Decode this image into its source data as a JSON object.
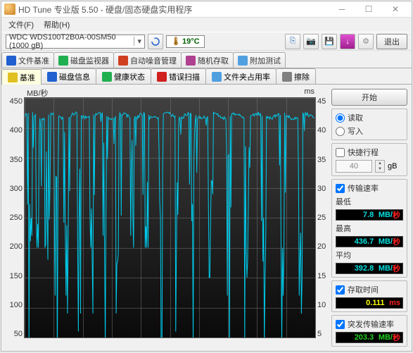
{
  "window": {
    "title": "HD Tune 专业版 5.50 - 硬盘/固态硬盘实用程序"
  },
  "menu": {
    "file": "文件(F)",
    "help": "帮助(H)"
  },
  "toolbar": {
    "device": "WDC WDS100T2B0A-00SM50 (1000 gB)",
    "temperature": "19°C",
    "exit": "退出"
  },
  "colors": {
    "cyan": "#00e0e0",
    "yellow": "#ffff00",
    "red": "#ff2020",
    "green": "#20d020",
    "box_bg": "#000000"
  },
  "tabs_top": [
    {
      "label": "文件基准",
      "icon_color": "#2060d0"
    },
    {
      "label": "磁盘监视器",
      "icon_color": "#20b050"
    },
    {
      "label": "自动噪音管理",
      "icon_color": "#d04020"
    },
    {
      "label": "随机存取",
      "icon_color": "#b04090"
    },
    {
      "label": "附加测试",
      "icon_color": "#50a0e0"
    }
  ],
  "tabs_bottom": [
    {
      "label": "基准",
      "icon_color": "#e0c020",
      "active": true
    },
    {
      "label": "磁盘信息",
      "icon_color": "#2060d0"
    },
    {
      "label": "健康状态",
      "icon_color": "#20b050"
    },
    {
      "label": "错误扫描",
      "icon_color": "#d02020"
    },
    {
      "label": "文件夹占用率",
      "icon_color": "#50a0e0"
    },
    {
      "label": "擦除",
      "icon_color": "#808080"
    }
  ],
  "chart": {
    "y_label": "MB/秒",
    "y2_label": "ms",
    "y_max": 450,
    "y_min": 50,
    "y_step": 50,
    "y2_max": 45,
    "y2_min": 5,
    "y2_step": 5,
    "line_color": "#00c8e8",
    "bg_top": "#404040",
    "bg_bottom": "#0a0a0a",
    "grid_color": "rgba(120,120,120,0.5)"
  },
  "sidebar": {
    "start": "开始",
    "mode": {
      "read": "读取",
      "write": "写入",
      "selected": "read"
    },
    "short_stroke": {
      "label": "快捷行程",
      "value": "40",
      "unit": "gB",
      "checked": false
    },
    "transfer": {
      "title": "传输速率",
      "checked": true,
      "min_label": "最低",
      "min_value": "7.8",
      "min_unit": "MB/秒",
      "max_label": "最高",
      "max_value": "436.7",
      "max_unit": "MB/秒",
      "avg_label": "平均",
      "avg_value": "392.8",
      "avg_unit": "MB/秒"
    },
    "access": {
      "label": "存取时间",
      "checked": true,
      "value": "0.111",
      "unit": "ms"
    },
    "burst": {
      "label": "突发传输速率",
      "checked": true,
      "value": "203.3",
      "unit": "MB/秒"
    }
  }
}
